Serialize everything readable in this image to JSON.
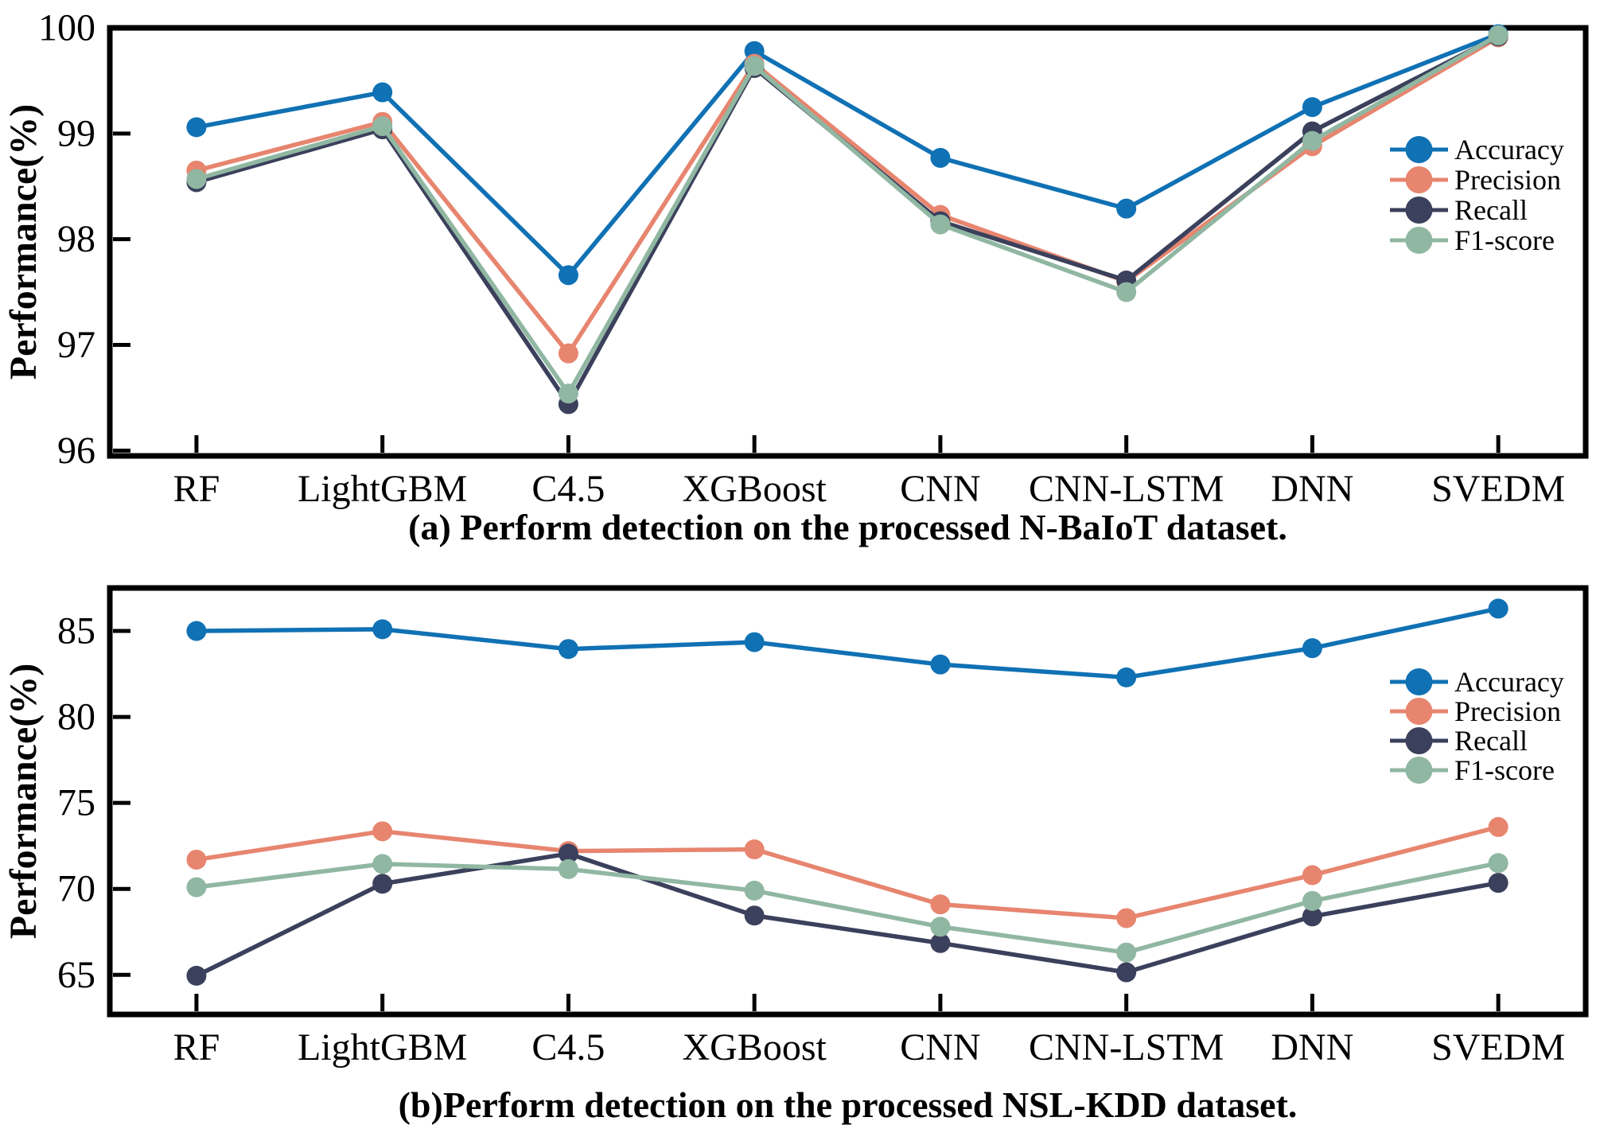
{
  "figure": {
    "background": "#ffffff",
    "axis_color": "#000000",
    "legend_labels": [
      "Accuracy",
      "Precision",
      "Recall",
      "F1-score"
    ],
    "series_colors": {
      "Accuracy": "#1071B4",
      "Precision": "#E7856F",
      "Recall": "#3B405C",
      "F1-score": "#90B7A2"
    }
  },
  "chart_data": [
    {
      "type": "line",
      "id": "a",
      "caption": "(a) Perform detection on the processed N-BaIoT dataset.",
      "ylabel": "Performance(%)",
      "xlabel": "",
      "categories": [
        "RF",
        "LightGBM",
        "C4.5",
        "XGBoost",
        "CNN",
        "CNN-LSTM",
        "DNN",
        "SVEDM"
      ],
      "yticks": [
        96,
        97,
        98,
        99,
        100
      ],
      "ylim": [
        95.95,
        100.0
      ],
      "grid": false,
      "legend_position": "right-upper-inside",
      "series": [
        {
          "name": "Accuracy",
          "color": "#1071B4",
          "values": [
            99.06,
            99.39,
            97.66,
            99.78,
            98.77,
            98.29,
            99.25,
            99.94
          ]
        },
        {
          "name": "Precision",
          "color": "#E7856F",
          "values": [
            98.65,
            99.11,
            96.92,
            99.66,
            98.23,
            97.6,
            98.88,
            99.91
          ]
        },
        {
          "name": "Recall",
          "color": "#3B405C",
          "values": [
            98.54,
            99.04,
            96.44,
            99.62,
            98.17,
            97.61,
            99.02,
            99.92
          ]
        },
        {
          "name": "F1-score",
          "color": "#90B7A2",
          "values": [
            98.57,
            99.07,
            96.54,
            99.64,
            98.14,
            97.5,
            98.93,
            99.93
          ]
        }
      ]
    },
    {
      "type": "line",
      "id": "b",
      "caption": "(b)Perform detection on the processed NSL-KDD dataset.",
      "ylabel": "Performance(%)",
      "xlabel": "",
      "categories": [
        "RF",
        "LightGBM",
        "C4.5",
        "XGBoost",
        "CNN",
        "CNN-LSTM",
        "DNN",
        "SVEDM"
      ],
      "yticks": [
        65,
        70,
        75,
        80,
        85
      ],
      "ylim": [
        62.7,
        87.5
      ],
      "grid": false,
      "legend_position": "right-upper-inside",
      "series": [
        {
          "name": "Accuracy",
          "color": "#1071B4",
          "values": [
            85.0,
            85.1,
            83.95,
            84.35,
            83.05,
            82.3,
            84.0,
            86.3
          ]
        },
        {
          "name": "Precision",
          "color": "#E7856F",
          "values": [
            71.7,
            73.35,
            72.2,
            72.3,
            69.1,
            68.3,
            70.8,
            73.6
          ]
        },
        {
          "name": "Recall",
          "color": "#3B405C",
          "values": [
            64.95,
            70.3,
            72.05,
            68.45,
            66.85,
            65.15,
            68.4,
            70.35
          ]
        },
        {
          "name": "F1-score",
          "color": "#90B7A2",
          "values": [
            70.1,
            71.45,
            71.15,
            69.9,
            67.8,
            66.3,
            69.3,
            71.5
          ]
        }
      ]
    }
  ]
}
